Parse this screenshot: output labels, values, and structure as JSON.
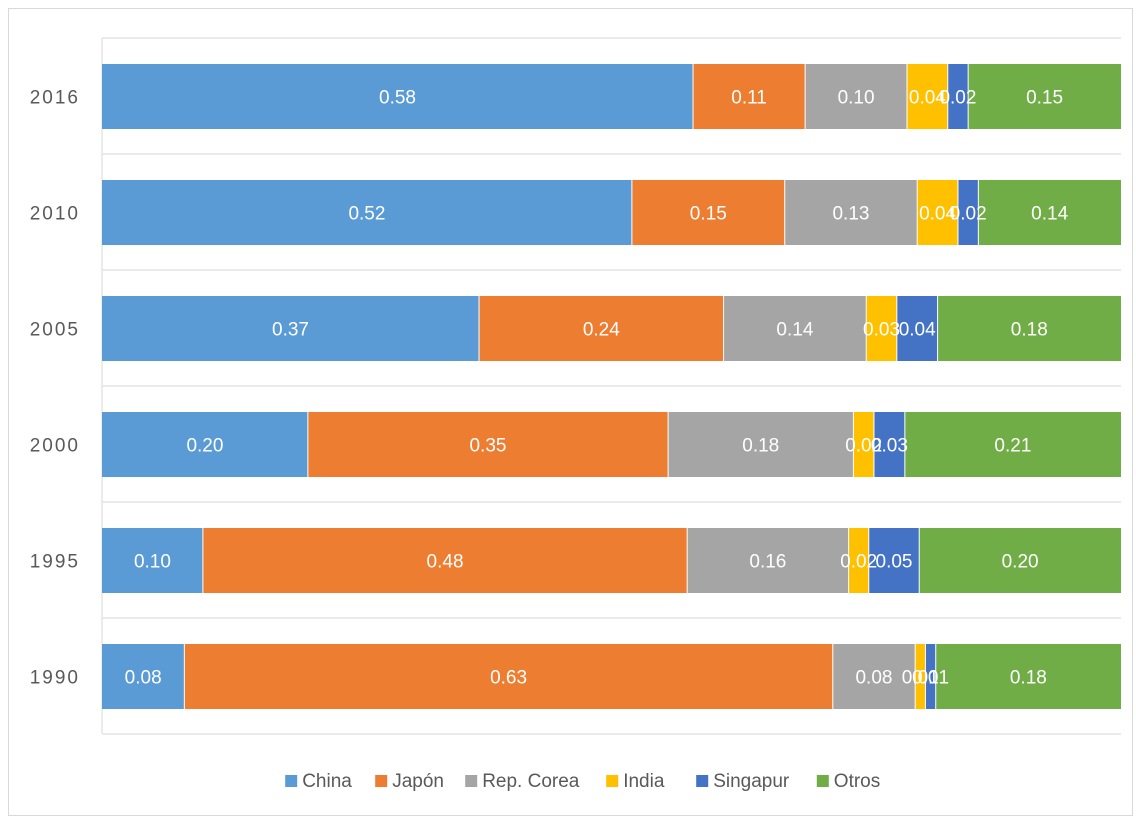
{
  "chart_data": {
    "type": "bar",
    "orientation": "horizontal",
    "stacked": true,
    "title": "",
    "xlabel": "",
    "ylabel": "",
    "categories": [
      "2016",
      "2010",
      "2005",
      "2000",
      "1995",
      "1990"
    ],
    "series": [
      {
        "name": "China",
        "color": "#5b9bd5",
        "values": [
          0.58,
          0.52,
          0.37,
          0.2,
          0.1,
          0.08
        ],
        "labels": [
          "0.58",
          "0.52",
          "0.37",
          "0.20",
          "0.10",
          "0.08"
        ]
      },
      {
        "name": "Japón",
        "color": "#ed7d31",
        "values": [
          0.11,
          0.15,
          0.24,
          0.35,
          0.48,
          0.63
        ],
        "labels": [
          "0.11",
          "0.15",
          "0.24",
          "0.35",
          "0.48",
          "0.63"
        ]
      },
      {
        "name": "Rep. Corea",
        "color": "#a5a5a5",
        "values": [
          0.1,
          0.13,
          0.14,
          0.18,
          0.16,
          0.08
        ],
        "labels": [
          "0.10",
          "0.13",
          "0.14",
          "0.18",
          "0.16",
          "0.08"
        ]
      },
      {
        "name": "India",
        "color": "#ffc000",
        "values": [
          0.04,
          0.04,
          0.03,
          0.02,
          0.02,
          0.01
        ],
        "labels": [
          "0.04",
          "0.04",
          "0.03",
          "0.02",
          "0.02",
          "0.01"
        ]
      },
      {
        "name": "Singapur",
        "color": "#4472c4",
        "values": [
          0.02,
          0.02,
          0.04,
          0.03,
          0.05,
          0.01
        ],
        "labels": [
          "0.02",
          "0.02",
          "0.04",
          "0.03",
          "0.05",
          "0.01"
        ]
      },
      {
        "name": "Otros",
        "color": "#70ad47",
        "values": [
          0.15,
          0.14,
          0.18,
          0.21,
          0.2,
          0.18
        ],
        "labels": [
          "0.15",
          "0.14",
          "0.18",
          "0.21",
          "0.20",
          "0.18"
        ]
      }
    ],
    "xlim": [
      0,
      1
    ],
    "grid": true,
    "legend": "bottom"
  }
}
